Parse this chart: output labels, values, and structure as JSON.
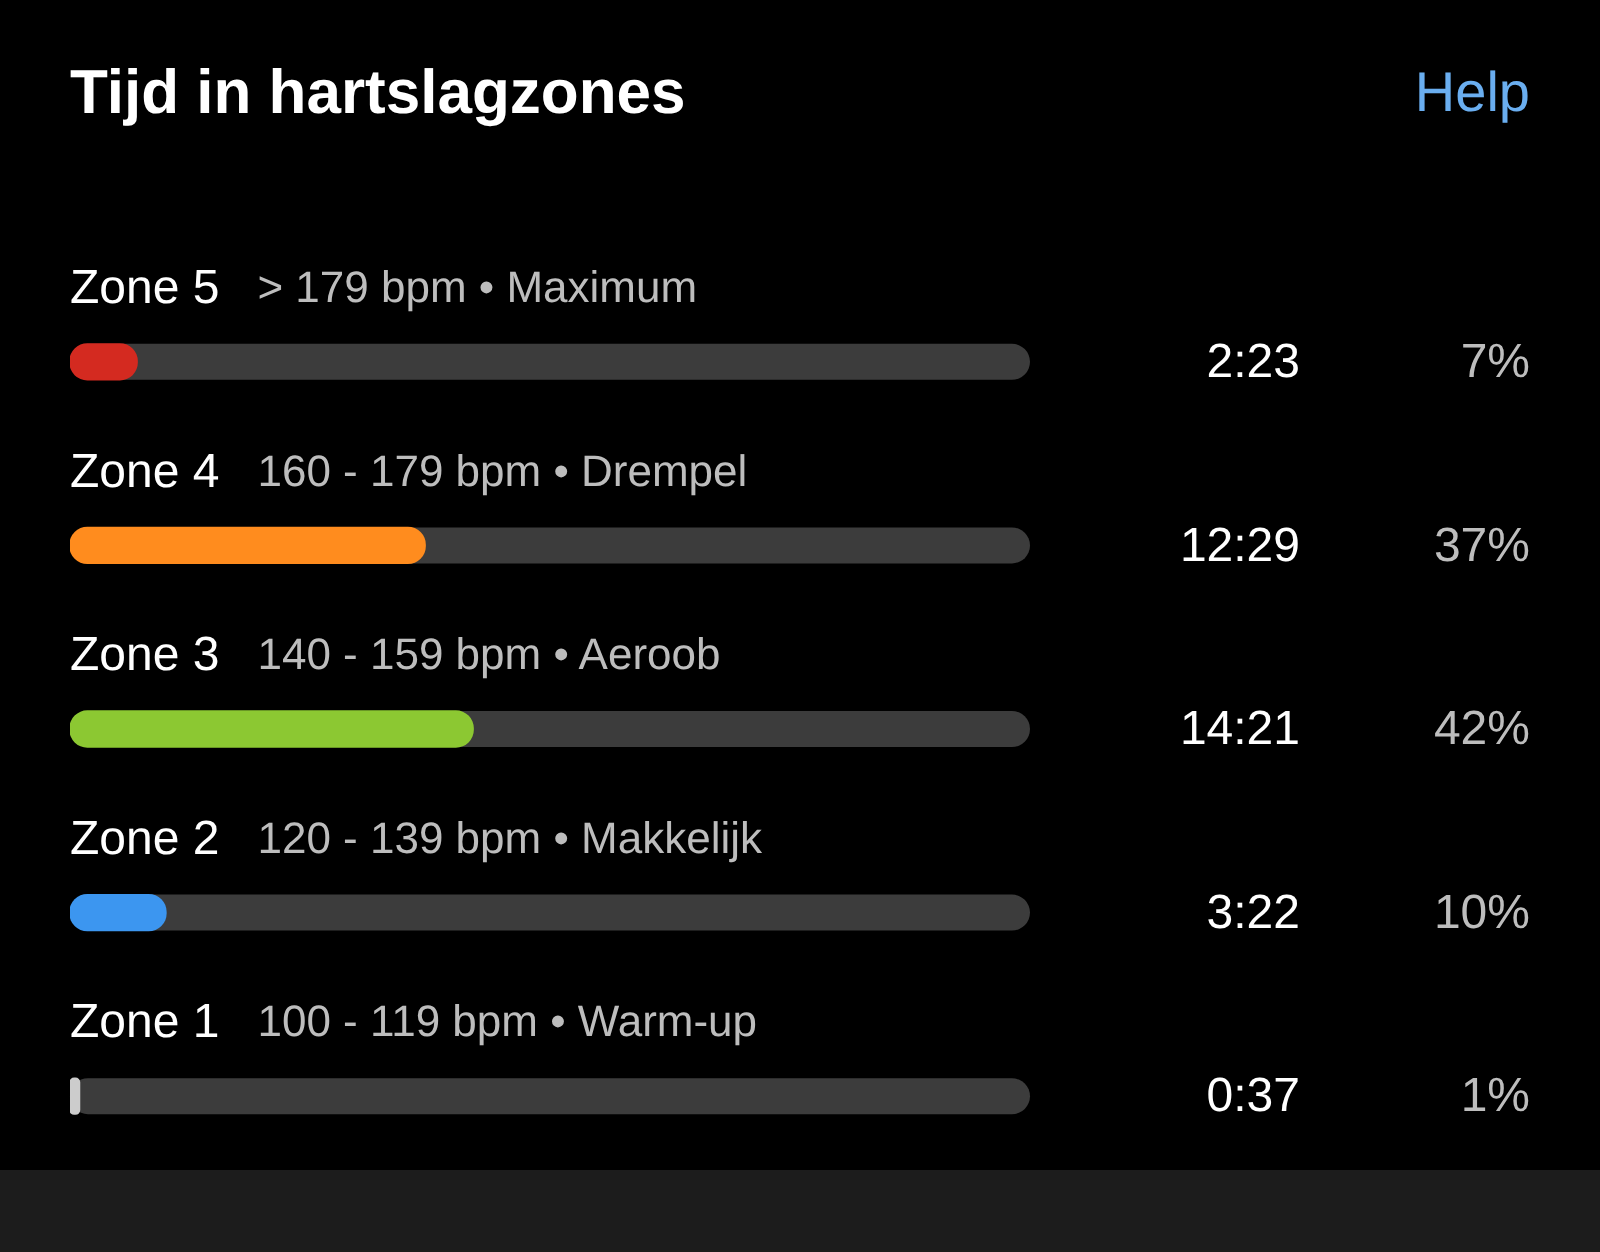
{
  "chart_data": {
    "type": "bar",
    "orientation": "horizontal",
    "title": "Tijd in hartslagzones",
    "categories": [
      "Zone 5",
      "Zone 4",
      "Zone 3",
      "Zone 2",
      "Zone 1"
    ],
    "values": [
      7,
      37,
      42,
      10,
      1
    ],
    "colors": [
      "#d42a20",
      "#ff8c1e",
      "#8cc832",
      "#3c96f0",
      "#cccccc"
    ],
    "value_labels": [
      "7%",
      "37%",
      "42%",
      "10%",
      "1%"
    ],
    "xlim": [
      0,
      100
    ],
    "annotations": [
      "Help",
      "> 179 bpm • Maximum",
      "2:23",
      "160 - 179 bpm • Drempel",
      "12:29",
      "140 - 159 bpm • Aeroob",
      "14:21",
      "120 - 139 bpm • Makkelijk",
      "3:22",
      "100 - 119 bpm • Warm-up",
      "0:37"
    ]
  }
}
